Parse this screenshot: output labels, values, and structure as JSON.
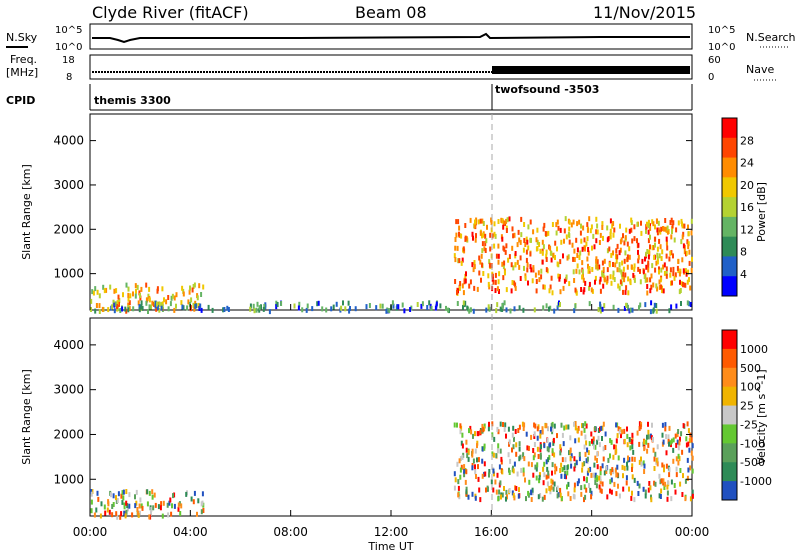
{
  "header": {
    "station": "Clyde River (fitACF)",
    "beam": "Beam 08",
    "date": "11/Nov/2015"
  },
  "top_panels": {
    "nsky_label": "N.Sky",
    "nsearch_label": "N.Search",
    "nsky_ticks": [
      "10^5",
      "10^0"
    ],
    "nsearch_ticks": [
      "10^5",
      "10^0"
    ],
    "freq_label_1": "Freq.",
    "freq_label_2": "[MHz]",
    "freq_ticks": [
      "18",
      "8"
    ],
    "nave_label": "Nave",
    "nave_ticks": [
      "60",
      "0"
    ],
    "cpid_label": "CPID",
    "cpid_segments": [
      {
        "name": "themis 3300",
        "start_hour": 0
      },
      {
        "name": "twofsound -3503",
        "start_hour": 16
      }
    ]
  },
  "chart_data": [
    {
      "type": "heatmap",
      "name": "power",
      "ylabel": "Slant Range [km]",
      "ylim": [
        180,
        4600
      ],
      "yticks": [
        1000,
        2000,
        3000,
        4000
      ],
      "xlim": [
        0,
        24
      ],
      "colorbar_label": "Power [dB]",
      "colorbar_ticks": [
        "28",
        "24",
        "20",
        "16",
        "12",
        "8",
        "4"
      ],
      "colorbar_colors": [
        "#0000ff",
        "#2060c8",
        "#2e8b57",
        "#64b464",
        "#b4d232",
        "#f0c800",
        "#ff8c00",
        "#ff4500",
        "#ff0000"
      ],
      "echo_regions": [
        {
          "start_hour": 0.0,
          "end_hour": 4.5,
          "range_km": [
            200,
            800
          ],
          "power_db": 20
        },
        {
          "start_hour": 14.5,
          "end_hour": 24.0,
          "range_km": [
            600,
            2300
          ],
          "power_db": 24
        },
        {
          "start_hour": 0.0,
          "end_hour": 24.0,
          "range_km": [
            200,
            400
          ],
          "power_db": 8
        }
      ]
    },
    {
      "type": "heatmap",
      "name": "velocity",
      "ylabel": "Slant Range [km]",
      "xlabel": "Time UT",
      "ylim": [
        180,
        4600
      ],
      "yticks": [
        1000,
        2000,
        3000,
        4000
      ],
      "xlim": [
        0,
        24
      ],
      "xticks": [
        "00:00",
        "04:00",
        "08:00",
        "12:00",
        "16:00",
        "20:00",
        "00:00"
      ],
      "colorbar_label": "Velocity [m s^-1]",
      "colorbar_ticks": [
        "1000",
        "500",
        "100",
        "25",
        "-25",
        "-100",
        "-500",
        "-1000"
      ],
      "colorbar_colors": [
        "#2050c0",
        "#2e8b57",
        "#5aa05a",
        "#64c832",
        "#c8c8c8",
        "#f0b400",
        "#ff8c1a",
        "#ff5a00",
        "#ff0000"
      ],
      "echo_regions": [
        {
          "start_hour": 14.5,
          "end_hour": 24.0,
          "range_km": [
            600,
            2300
          ],
          "velocity_ms": -100
        },
        {
          "start_hour": 0.0,
          "end_hour": 4.5,
          "range_km": [
            200,
            800
          ],
          "velocity_ms": 25
        }
      ]
    }
  ]
}
